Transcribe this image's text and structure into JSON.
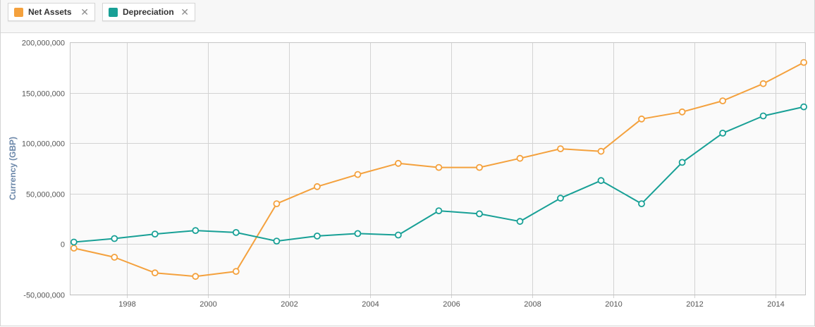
{
  "legend": {
    "items": [
      {
        "label": "Net Assets",
        "color": "#f4a13d",
        "close_icon": "✕"
      },
      {
        "label": "Depreciation",
        "color": "#18a096",
        "close_icon": "✕"
      }
    ]
  },
  "chart_data": {
    "type": "line",
    "title": "",
    "xlabel": "",
    "ylabel": "Currency (GBP)",
    "xlim": [
      1996.6,
      2014.75
    ],
    "ylim": [
      -50000000,
      200000000
    ],
    "grid": true,
    "x_ticks": [
      1998,
      2000,
      2002,
      2004,
      2006,
      2008,
      2010,
      2012,
      2014
    ],
    "x_tick_labels": [
      "1998",
      "2000",
      "2002",
      "2004",
      "2006",
      "2008",
      "2010",
      "2012",
      "2014"
    ],
    "y_ticks": [
      -50000000,
      0,
      50000000,
      100000000,
      150000000,
      200000000
    ],
    "y_tick_labels": [
      "-50,000,000",
      "0",
      "50,000,000",
      "100,000,000",
      "150,000,000",
      "200,000,000"
    ],
    "x": [
      1996.7,
      1997.7,
      1998.7,
      1999.7,
      2000.7,
      2001.7,
      2002.7,
      2003.7,
      2004.7,
      2005.7,
      2006.7,
      2007.7,
      2008.7,
      2009.7,
      2010.7,
      2011.7,
      2012.7,
      2013.7,
      2014.7
    ],
    "series": [
      {
        "name": "Net Assets",
        "color": "#f4a13d",
        "values": [
          -4000000,
          -13000000,
          -28500000,
          -32000000,
          -27000000,
          40000000,
          57000000,
          69000000,
          80000000,
          76000000,
          76000000,
          85000000,
          94500000,
          92000000,
          124000000,
          131000000,
          142000000,
          159000000,
          180000000
        ]
      },
      {
        "name": "Depreciation",
        "color": "#18a096",
        "values": [
          2000000,
          5500000,
          10000000,
          13500000,
          11500000,
          3000000,
          8000000,
          10500000,
          9000000,
          33000000,
          30000000,
          22500000,
          45500000,
          63000000,
          40000000,
          81000000,
          110000000,
          127000000,
          136000000
        ]
      }
    ]
  }
}
